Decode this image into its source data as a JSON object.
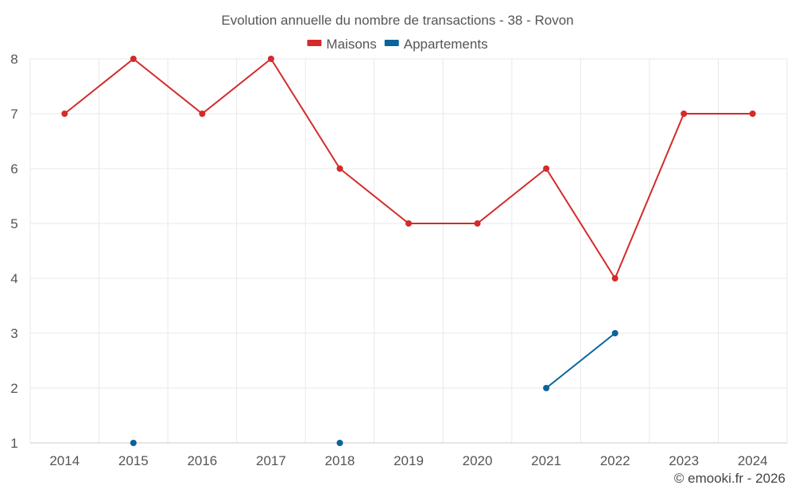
{
  "chart_data": {
    "type": "line",
    "title": "Evolution annuelle du nombre de transactions - 38 - Rovon",
    "categories": [
      "2014",
      "2015",
      "2016",
      "2017",
      "2018",
      "2019",
      "2020",
      "2021",
      "2022",
      "2023",
      "2024"
    ],
    "ylim": [
      1,
      8
    ],
    "yticks": [
      1,
      2,
      3,
      4,
      5,
      6,
      7,
      8
    ],
    "xlabel": "",
    "ylabel": "",
    "grid": true,
    "legend_position": "top-center",
    "series": [
      {
        "name": "Maisons",
        "color": "#d42a2a",
        "values": [
          7,
          8,
          7,
          8,
          6,
          5,
          5,
          6,
          4,
          7,
          7
        ]
      },
      {
        "name": "Appartements",
        "color": "#08649a",
        "values": [
          null,
          1,
          null,
          null,
          1,
          null,
          null,
          2,
          3,
          null,
          null
        ]
      }
    ]
  },
  "credit": "© emooki.fr - 2026"
}
